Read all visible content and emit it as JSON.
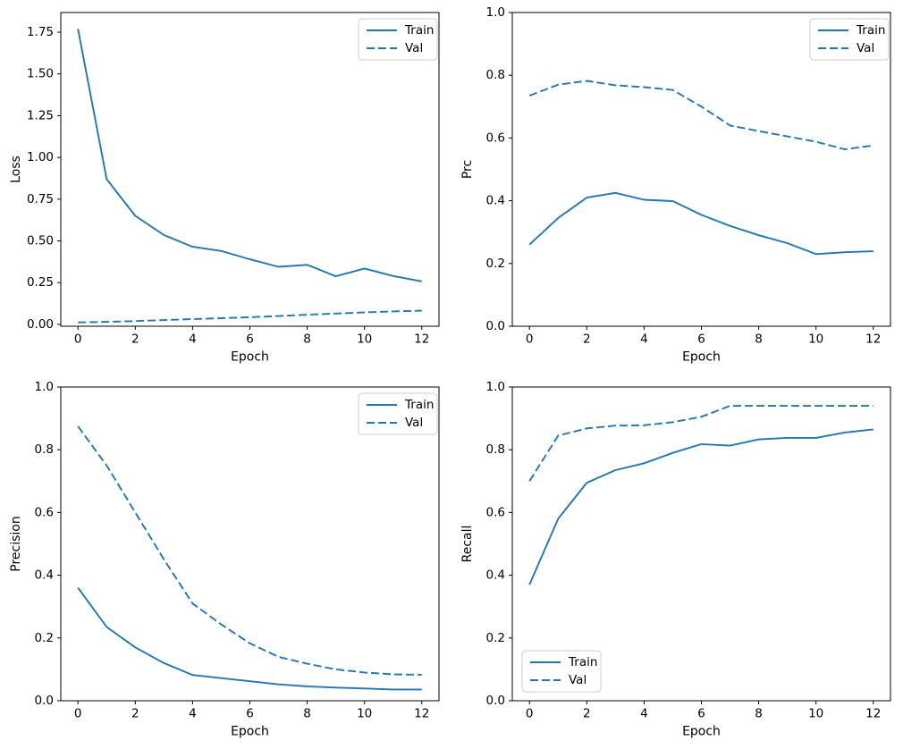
{
  "figure": {
    "background": "#ffffff",
    "line_color": "#1f77b4",
    "spine_color": "#000000",
    "legend_border_color": "#cccccc",
    "legend_fill": "#ffffff"
  },
  "chart_data": [
    {
      "type": "line",
      "title": "",
      "xlabel": "Epoch",
      "ylabel": "Loss",
      "x": [
        0,
        1,
        2,
        3,
        4,
        5,
        6,
        7,
        8,
        9,
        10,
        11,
        12
      ],
      "series": [
        {
          "name": "Train",
          "style": "solid",
          "color": "#1f77b4",
          "values": [
            1.77,
            0.87,
            0.65,
            0.535,
            0.465,
            0.44,
            0.39,
            0.345,
            0.357,
            0.288,
            0.335,
            0.29,
            0.258
          ]
        },
        {
          "name": "Val",
          "style": "dashed",
          "color": "#1f77b4",
          "values": [
            0.012,
            0.015,
            0.02,
            0.026,
            0.032,
            0.037,
            0.043,
            0.05,
            0.058,
            0.065,
            0.072,
            0.078,
            0.082
          ]
        }
      ],
      "xlim": [
        -0.6,
        12.6
      ],
      "ylim": [
        -0.011,
        1.868
      ],
      "xticks": [
        0,
        2,
        4,
        6,
        8,
        10,
        12
      ],
      "xtick_labels": [
        "0",
        "2",
        "4",
        "6",
        "8",
        "10",
        "12"
      ],
      "yticks": [
        0,
        0.25,
        0.5,
        0.75,
        1.0,
        1.25,
        1.5,
        1.75
      ],
      "ytick_labels": [
        "0.00",
        "0.25",
        "0.50",
        "0.75",
        "1.00",
        "1.25",
        "1.50",
        "1.75"
      ],
      "grid": false,
      "legend": {
        "position": "top-right",
        "entries": [
          "Train",
          "Val"
        ]
      }
    },
    {
      "type": "line",
      "title": "",
      "xlabel": "Epoch",
      "ylabel": "Prc",
      "x": [
        0,
        1,
        2,
        3,
        4,
        5,
        6,
        7,
        8,
        9,
        10,
        11,
        12
      ],
      "series": [
        {
          "name": "Train",
          "style": "solid",
          "color": "#1f77b4",
          "values": [
            0.26,
            0.345,
            0.41,
            0.425,
            0.403,
            0.399,
            0.355,
            0.32,
            0.29,
            0.265,
            0.23,
            0.236,
            0.239
          ]
        },
        {
          "name": "Val",
          "style": "dashed",
          "color": "#1f77b4",
          "values": [
            0.735,
            0.77,
            0.782,
            0.768,
            0.762,
            0.753,
            0.7,
            0.64,
            0.622,
            0.605,
            0.588,
            0.564,
            0.576
          ]
        }
      ],
      "xlim": [
        -0.6,
        12.6
      ],
      "ylim": [
        0,
        1
      ],
      "xticks": [
        0,
        2,
        4,
        6,
        8,
        10,
        12
      ],
      "xtick_labels": [
        "0",
        "2",
        "4",
        "6",
        "8",
        "10",
        "12"
      ],
      "yticks": [
        0,
        0.2,
        0.4,
        0.6,
        0.8,
        1.0
      ],
      "ytick_labels": [
        "0.0",
        "0.2",
        "0.4",
        "0.6",
        "0.8",
        "1.0"
      ],
      "grid": false,
      "legend": {
        "position": "top-right",
        "entries": [
          "Train",
          "Val"
        ]
      }
    },
    {
      "type": "line",
      "title": "",
      "xlabel": "Epoch",
      "ylabel": "Precision",
      "x": [
        0,
        1,
        2,
        3,
        4,
        5,
        6,
        7,
        8,
        9,
        10,
        11,
        12
      ],
      "series": [
        {
          "name": "Train",
          "style": "solid",
          "color": "#1f77b4",
          "values": [
            0.36,
            0.235,
            0.17,
            0.12,
            0.082,
            0.072,
            0.062,
            0.052,
            0.046,
            0.042,
            0.039,
            0.036,
            0.036
          ]
        },
        {
          "name": "Val",
          "style": "dashed",
          "color": "#1f77b4",
          "values": [
            0.875,
            0.75,
            0.6,
            0.45,
            0.31,
            0.243,
            0.183,
            0.14,
            0.118,
            0.1,
            0.09,
            0.084,
            0.083
          ]
        }
      ],
      "xlim": [
        -0.6,
        12.6
      ],
      "ylim": [
        0,
        1
      ],
      "xticks": [
        0,
        2,
        4,
        6,
        8,
        10,
        12
      ],
      "xtick_labels": [
        "0",
        "2",
        "4",
        "6",
        "8",
        "10",
        "12"
      ],
      "yticks": [
        0,
        0.2,
        0.4,
        0.6,
        0.8,
        1.0
      ],
      "ytick_labels": [
        "0.0",
        "0.2",
        "0.4",
        "0.6",
        "0.8",
        "1.0"
      ],
      "grid": false,
      "legend": {
        "position": "top-right",
        "entries": [
          "Train",
          "Val"
        ]
      }
    },
    {
      "type": "line",
      "title": "",
      "xlabel": "Epoch",
      "ylabel": "Recall",
      "x": [
        0,
        1,
        2,
        3,
        4,
        5,
        6,
        7,
        8,
        9,
        10,
        11,
        12
      ],
      "series": [
        {
          "name": "Train",
          "style": "solid",
          "color": "#1f77b4",
          "values": [
            0.37,
            0.58,
            0.695,
            0.735,
            0.757,
            0.79,
            0.818,
            0.813,
            0.833,
            0.838,
            0.838,
            0.855,
            0.865
          ]
        },
        {
          "name": "Val",
          "style": "dashed",
          "color": "#1f77b4",
          "values": [
            0.7,
            0.845,
            0.868,
            0.877,
            0.878,
            0.888,
            0.905,
            0.94,
            0.94,
            0.94,
            0.94,
            0.94,
            0.94
          ]
        }
      ],
      "xlim": [
        -0.6,
        12.6
      ],
      "ylim": [
        0,
        1
      ],
      "xticks": [
        0,
        2,
        4,
        6,
        8,
        10,
        12
      ],
      "xtick_labels": [
        "0",
        "2",
        "4",
        "6",
        "8",
        "10",
        "12"
      ],
      "yticks": [
        0,
        0.2,
        0.4,
        0.6,
        0.8,
        1.0
      ],
      "ytick_labels": [
        "0.0",
        "0.2",
        "0.4",
        "0.6",
        "0.8",
        "1.0"
      ],
      "grid": false,
      "legend": {
        "position": "bottom-left",
        "entries": [
          "Train",
          "Val"
        ]
      }
    }
  ]
}
